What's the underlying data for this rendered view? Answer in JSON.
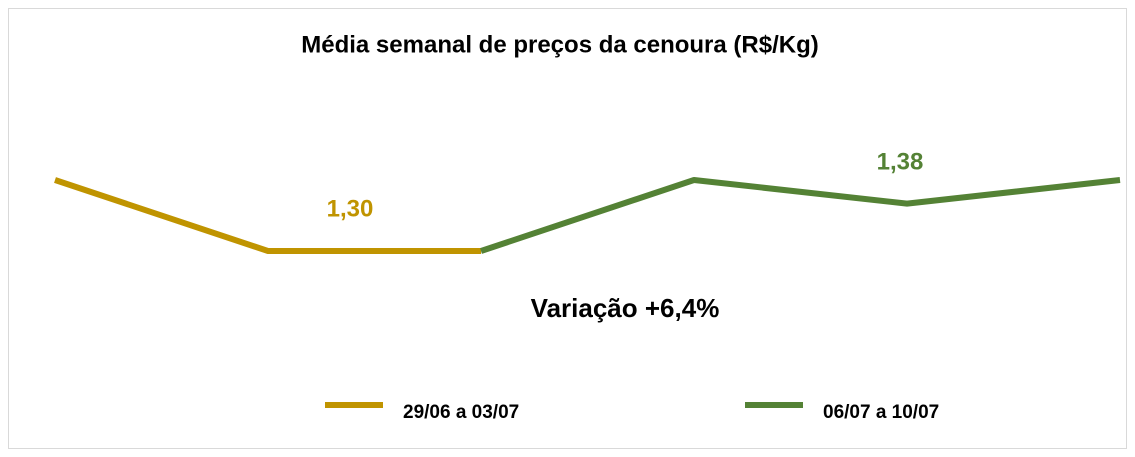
{
  "chart_data": {
    "type": "line",
    "title": "Média semanal de preços da cenoura (R$/Kg)",
    "categories": [
      null,
      null,
      null,
      null,
      null,
      null
    ],
    "series": [
      {
        "name": "29/06 a 03/07",
        "color": "#c09400",
        "values": [
          1.4,
          1.25,
          1.25,
          null,
          null,
          null
        ]
      },
      {
        "name": "06/07 a 10/07",
        "color": "#548235",
        "values": [
          null,
          null,
          1.25,
          1.4,
          1.35,
          1.4
        ]
      }
    ],
    "annotations": [
      {
        "text": "1,30",
        "color": "#c09400"
      },
      {
        "text": "1,38",
        "color": "#548235"
      },
      {
        "text": "Variação +6,4%",
        "color": "#000000"
      }
    ],
    "legend": "bottom"
  }
}
